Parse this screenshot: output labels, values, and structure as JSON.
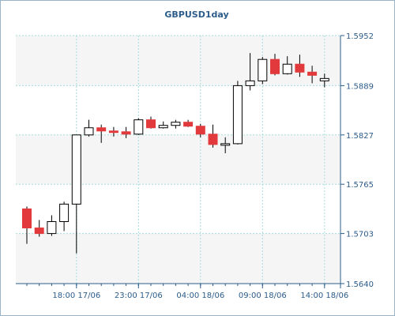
{
  "chart_data": {
    "type": "candlestick",
    "title": "GBPUSD1day",
    "xlabel": "",
    "ylabel": "",
    "ylim": [
      1.564,
      1.5952
    ],
    "y_ticks": [
      "1.5640",
      "1.5703",
      "1.5765",
      "1.5827",
      "1.5889",
      "1.5952"
    ],
    "x_ticks": [
      {
        "label": "18:00 17/06",
        "index": 4
      },
      {
        "label": "23:00 17/06",
        "index": 9
      },
      {
        "label": "04:00 18/06",
        "index": 14
      },
      {
        "label": "09:00 18/06",
        "index": 19
      },
      {
        "label": "14:00 18/06",
        "index": 24
      }
    ],
    "grid": true,
    "legend": "none",
    "colors": {
      "up_fill": "#ffffff",
      "down_fill": "#e23a3c",
      "candle_outline": "#000000",
      "grid": "#a6dcdc",
      "axis": "#2c5c8a",
      "title": "#2c5c8a",
      "band_shade": "#f5f5f5"
    },
    "candles": [
      {
        "o": 1.5734,
        "h": 1.5737,
        "l": 1.569,
        "c": 1.571
      },
      {
        "o": 1.571,
        "h": 1.572,
        "l": 1.5699,
        "c": 1.5703
      },
      {
        "o": 1.5703,
        "h": 1.5726,
        "l": 1.57,
        "c": 1.5718
      },
      {
        "o": 1.5718,
        "h": 1.5743,
        "l": 1.5706,
        "c": 1.574
      },
      {
        "o": 1.574,
        "h": 1.5827,
        "l": 1.5678,
        "c": 1.5827
      },
      {
        "o": 1.5827,
        "h": 1.5846,
        "l": 1.5825,
        "c": 1.5836
      },
      {
        "o": 1.5836,
        "h": 1.584,
        "l": 1.5817,
        "c": 1.5832
      },
      {
        "o": 1.5832,
        "h": 1.5837,
        "l": 1.5825,
        "c": 1.5831
      },
      {
        "o": 1.5831,
        "h": 1.5837,
        "l": 1.5823,
        "c": 1.5828
      },
      {
        "o": 1.5828,
        "h": 1.5848,
        "l": 1.5827,
        "c": 1.5846
      },
      {
        "o": 1.5846,
        "h": 1.585,
        "l": 1.5835,
        "c": 1.5836
      },
      {
        "o": 1.5836,
        "h": 1.5844,
        "l": 1.5835,
        "c": 1.5839
      },
      {
        "o": 1.5839,
        "h": 1.5846,
        "l": 1.5835,
        "c": 1.5843
      },
      {
        "o": 1.5843,
        "h": 1.5846,
        "l": 1.5837,
        "c": 1.5838
      },
      {
        "o": 1.5838,
        "h": 1.5841,
        "l": 1.5824,
        "c": 1.5828
      },
      {
        "o": 1.5828,
        "h": 1.584,
        "l": 1.5811,
        "c": 1.5815
      },
      {
        "o": 1.5815,
        "h": 1.5824,
        "l": 1.5804,
        "c": 1.5816
      },
      {
        "o": 1.5816,
        "h": 1.5895,
        "l": 1.5815,
        "c": 1.5889
      },
      {
        "o": 1.5889,
        "h": 1.593,
        "l": 1.5883,
        "c": 1.5895
      },
      {
        "o": 1.5895,
        "h": 1.5925,
        "l": 1.5891,
        "c": 1.5922
      },
      {
        "o": 1.5922,
        "h": 1.5929,
        "l": 1.5902,
        "c": 1.5904
      },
      {
        "o": 1.5904,
        "h": 1.5926,
        "l": 1.5903,
        "c": 1.5916
      },
      {
        "o": 1.5916,
        "h": 1.5928,
        "l": 1.59,
        "c": 1.5906
      },
      {
        "o": 1.5906,
        "h": 1.5914,
        "l": 1.5892,
        "c": 1.5902
      },
      {
        "o": 1.5895,
        "h": 1.5904,
        "l": 1.5887,
        "c": 1.5898
      }
    ]
  }
}
